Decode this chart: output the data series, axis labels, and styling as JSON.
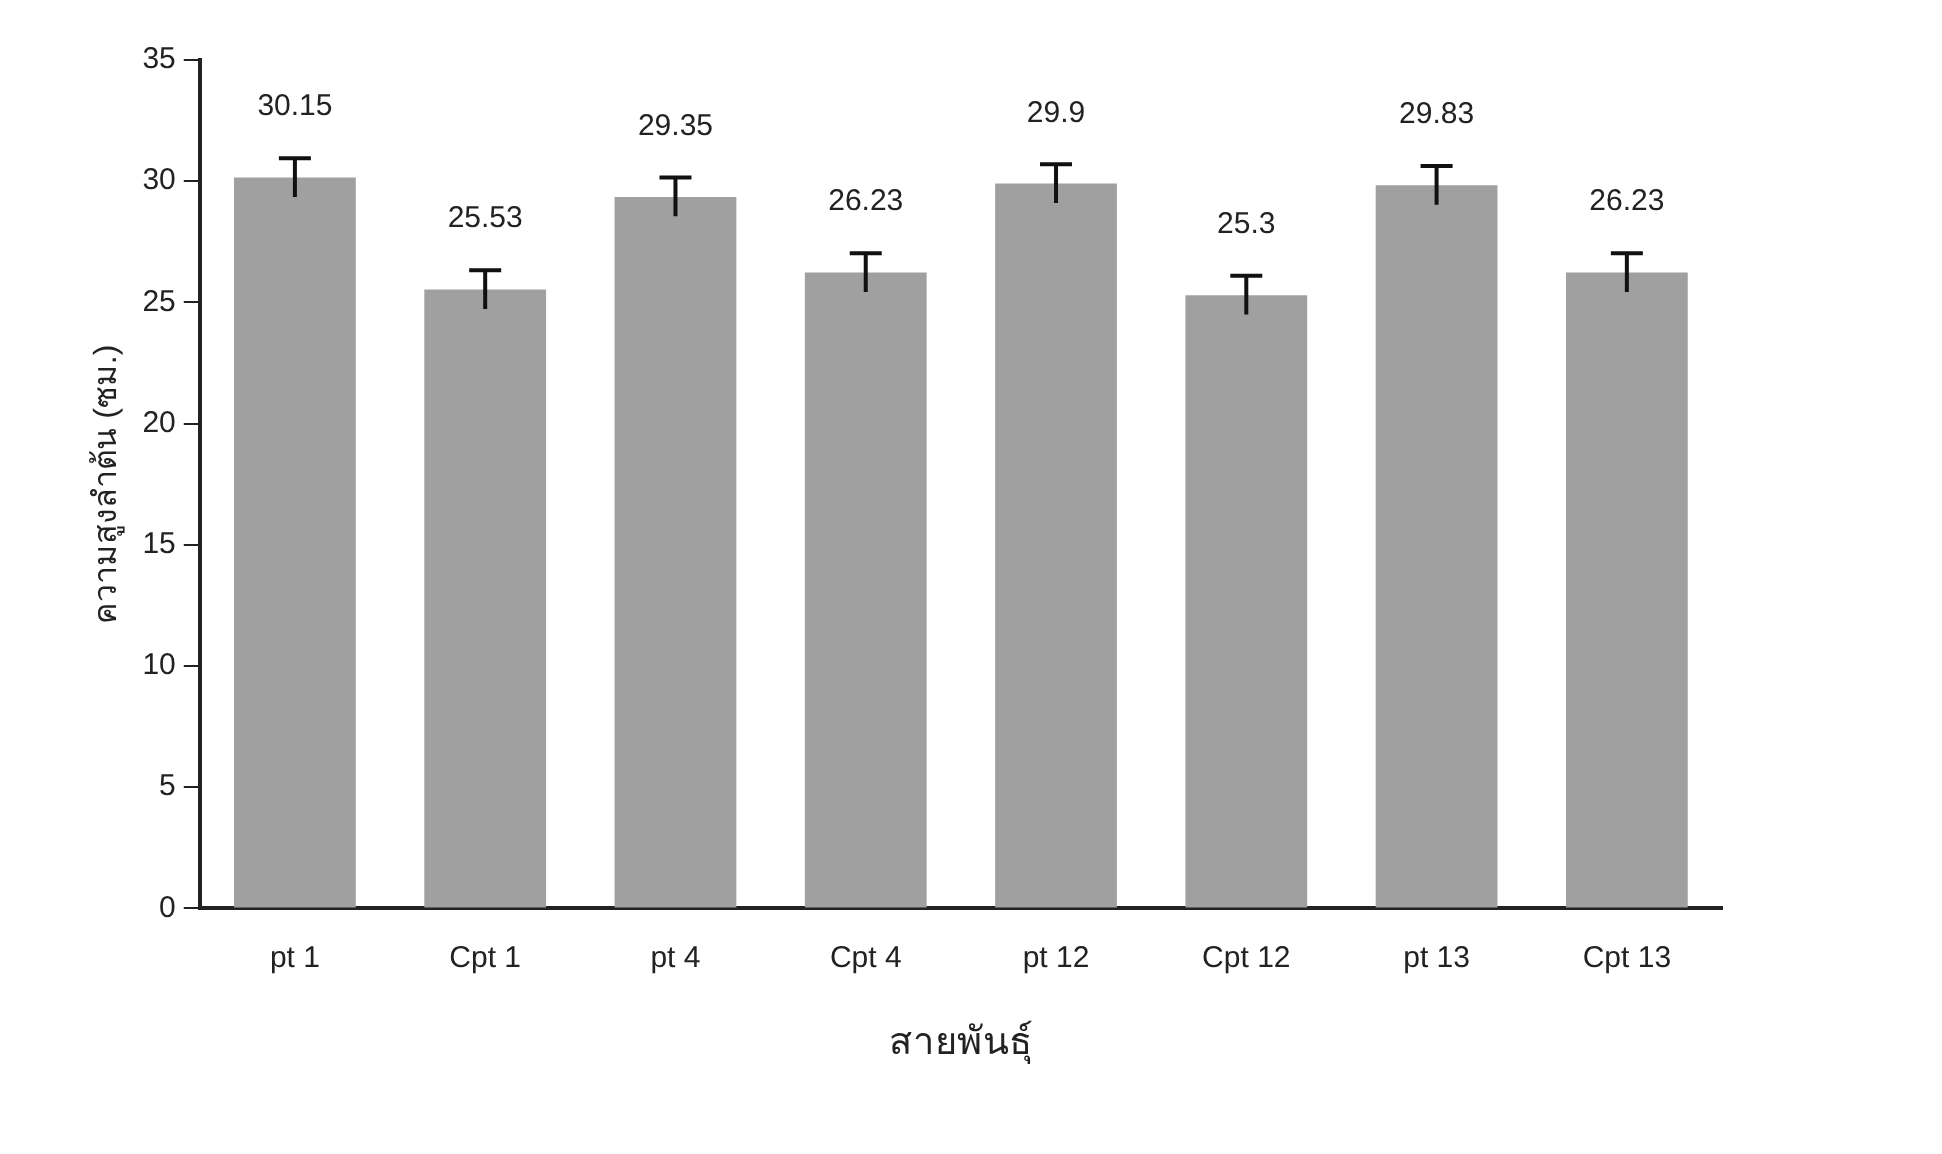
{
  "chart_data": {
    "type": "bar",
    "xlabel": "สายพันธุ์",
    "ylabel": "ความสูงลำต้น (ซม.)",
    "categories": [
      "pt 1",
      "Cpt 1",
      "pt 4",
      "Cpt 4",
      "pt 12",
      "Cpt 12",
      "pt 13",
      "Cpt 13"
    ],
    "values": [
      30.15,
      25.53,
      29.35,
      26.23,
      29.9,
      25.3,
      29.83,
      26.23
    ],
    "errors": [
      0.8,
      0.8,
      0.8,
      0.8,
      0.8,
      0.8,
      0.8,
      0.8
    ],
    "color": "#a0a0a0",
    "ylim": [
      0,
      35
    ],
    "yticks": [
      0,
      5,
      10,
      15,
      20,
      25,
      30,
      35
    ],
    "data_labels": true,
    "grid": false,
    "legend": false
  }
}
